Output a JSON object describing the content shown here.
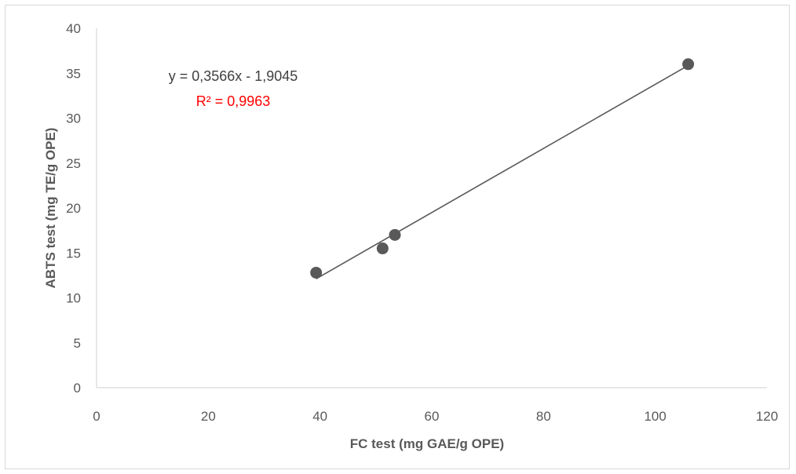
{
  "chart_data": {
    "type": "scatter",
    "xlabel": "FC test (mg GAE/g OPE)",
    "ylabel": "ABTS test (mg TE/g OPE)",
    "xlim": [
      0,
      120
    ],
    "ylim": [
      0,
      40
    ],
    "x_ticks": [
      "0",
      "20",
      "40",
      "60",
      "80",
      "100",
      "120"
    ],
    "y_ticks": [
      "0",
      "5",
      "10",
      "15",
      "20",
      "25",
      "30",
      "35",
      "40"
    ],
    "grid": false,
    "legend": "none",
    "series": [
      {
        "x": [
          39.3,
          51.2,
          53.4,
          105.9
        ],
        "y": [
          12.8,
          15.5,
          17.0,
          36.0
        ],
        "marker_color": "#595959"
      }
    ],
    "trendline": {
      "type": "linear",
      "slope": 0.3566,
      "intercept": -1.9045,
      "x_range": [
        39.3,
        105.9
      ],
      "color": "#595959",
      "equation_label": "y = 0,3566x - 1,9045",
      "r_squared_label": "R² = 0,9963",
      "r_squared_color": "#ff0000"
    }
  }
}
